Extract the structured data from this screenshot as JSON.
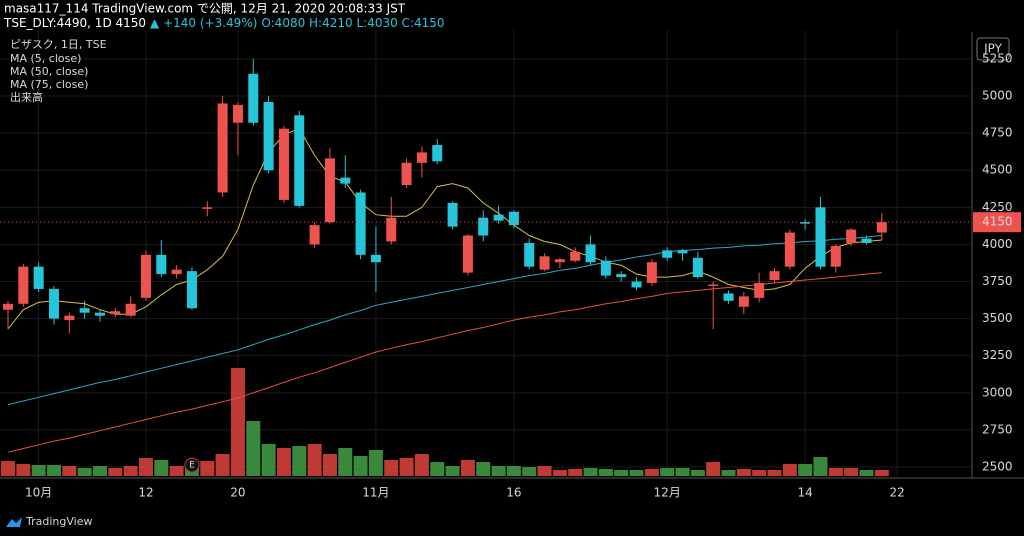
{
  "header": {
    "line1": "masa117_114 TradingView.com で公開, 12月 21, 2020 20:08:33 JST",
    "symbol": "TSE_DLY:4490, 1D 4150",
    "change": "▲ +140 (+3.49%)",
    "ohlc": "O:4080 H:4210 L:4030 C:4150"
  },
  "legend": [
    "ピザスク, 1日, TSE",
    "MA (5, close)",
    "MA (50, close)",
    "MA (75, close)",
    "出来高"
  ],
  "currency": "JPY",
  "earnings_marker": "E",
  "footer": "TradingView",
  "chart_data": {
    "type": "candlestick",
    "categories": [
      null,
      null,
      "10月",
      null,
      null,
      null,
      null,
      null,
      null,
      "12",
      null,
      null,
      null,
      null,
      null,
      "20",
      null,
      null,
      null,
      null,
      null,
      null,
      null,
      null,
      "11月",
      null,
      null,
      null,
      null,
      null,
      null,
      null,
      null,
      "16",
      null,
      null,
      null,
      null,
      null,
      null,
      null,
      null,
      null,
      "12月",
      null,
      null,
      null,
      null,
      null,
      null,
      null,
      null,
      "14",
      null,
      null,
      null,
      null,
      null,
      "22"
    ],
    "open": [
      3560,
      3600,
      3850,
      3700,
      3490,
      3570,
      3540,
      3530,
      3520,
      3640,
      3930,
      3800,
      3820,
      4240,
      4350,
      4820,
      5150,
      4960,
      4300,
      4870,
      4000,
      4150,
      4450,
      4350,
      3930,
      4020,
      4400,
      4550,
      4670,
      4280,
      3810,
      4180,
      4200,
      4220,
      4010,
      3830,
      3880,
      3890,
      4000,
      3890,
      3800,
      3750,
      3740,
      3960,
      3960,
      3910,
      3720,
      3670,
      3580,
      3640,
      3760,
      3850,
      4150,
      4250,
      3850,
      4010,
      4040,
      4080,
      null
    ],
    "high": [
      3620,
      3870,
      3880,
      3720,
      3540,
      3620,
      3560,
      3570,
      3650,
      3960,
      4030,
      3860,
      3850,
      4290,
      5000,
      4960,
      5250,
      5000,
      4800,
      4900,
      4150,
      4650,
      4600,
      4370,
      4120,
      4320,
      4580,
      4660,
      4710,
      4290,
      4070,
      4230,
      4260,
      4230,
      4040,
      3940,
      3910,
      3980,
      4060,
      3920,
      3820,
      3780,
      3900,
      3980,
      3970,
      3950,
      3750,
      3690,
      3680,
      3810,
      3840,
      4100,
      4170,
      4320,
      4000,
      4110,
      4060,
      4210,
      null
    ],
    "low": [
      3430,
      3580,
      3680,
      3460,
      3400,
      3500,
      3480,
      3510,
      3510,
      3620,
      3780,
      3770,
      3560,
      4190,
      4320,
      4600,
      4800,
      4480,
      4280,
      4250,
      3980,
      4140,
      4380,
      3900,
      3680,
      4000,
      4380,
      4450,
      4540,
      4100,
      3790,
      4020,
      4140,
      4110,
      3830,
      3820,
      3840,
      3880,
      3860,
      3770,
      3750,
      3690,
      3720,
      3890,
      3890,
      3770,
      3430,
      3600,
      3530,
      3610,
      3740,
      3830,
      4100,
      3830,
      3810,
      3990,
      4000,
      4030,
      null
    ],
    "close": [
      3600,
      3850,
      3700,
      3500,
      3520,
      3540,
      3520,
      3550,
      3600,
      3930,
      3800,
      3830,
      3570,
      4250,
      4950,
      4940,
      4820,
      4500,
      4780,
      4260,
      4130,
      4580,
      4410,
      3930,
      3880,
      4180,
      4550,
      4620,
      4560,
      4120,
      4060,
      4060,
      4160,
      4130,
      3850,
      3920,
      3900,
      3950,
      3880,
      3790,
      3780,
      3710,
      3880,
      3910,
      3940,
      3780,
      3730,
      3620,
      3650,
      3740,
      3820,
      4080,
      4140,
      3850,
      3990,
      4100,
      4010,
      4150,
      null
    ],
    "up_color": "#ef5350",
    "down_color": "#26c6da",
    "series": [
      {
        "name": "MA (5, close)",
        "color": "#d6c13a",
        "values": [
          3430,
          3560,
          3610,
          3620,
          3610,
          3600,
          3560,
          3530,
          3530,
          3580,
          3660,
          3730,
          3760,
          3830,
          3920,
          4100,
          4400,
          4620,
          4740,
          4780,
          4600,
          4460,
          4420,
          4280,
          4200,
          4190,
          4190,
          4250,
          4390,
          4410,
          4380,
          4280,
          4210,
          4130,
          4060,
          4020,
          4000,
          3950,
          3920,
          3880,
          3860,
          3800,
          3780,
          3780,
          3790,
          3820,
          3780,
          3730,
          3710,
          3690,
          3700,
          3730,
          3840,
          3920,
          3980,
          4010,
          4020,
          4030,
          null
        ]
      },
      {
        "name": "MA (50, close)",
        "color": "#2ba7c6",
        "values": [
          2920,
          2945,
          2970,
          2995,
          3020,
          3045,
          3070,
          3090,
          3115,
          3140,
          3165,
          3190,
          3215,
          3240,
          3265,
          3290,
          3325,
          3360,
          3390,
          3425,
          3460,
          3490,
          3525,
          3555,
          3590,
          3610,
          3630,
          3650,
          3670,
          3690,
          3710,
          3730,
          3750,
          3770,
          3790,
          3805,
          3825,
          3840,
          3860,
          3880,
          3895,
          3915,
          3930,
          3950,
          3960,
          3965,
          3975,
          3980,
          3990,
          3995,
          4005,
          4010,
          4020,
          4025,
          4035,
          4040,
          4050,
          4060,
          null
        ]
      },
      {
        "name": "MA (75, close)",
        "color": "#e8503a",
        "values": [
          2600,
          2625,
          2650,
          2675,
          2695,
          2720,
          2745,
          2770,
          2795,
          2820,
          2845,
          2870,
          2890,
          2915,
          2940,
          2965,
          3000,
          3035,
          3070,
          3105,
          3135,
          3170,
          3205,
          3240,
          3275,
          3300,
          3325,
          3345,
          3370,
          3395,
          3420,
          3440,
          3465,
          3490,
          3510,
          3525,
          3545,
          3560,
          3580,
          3600,
          3615,
          3635,
          3650,
          3670,
          3680,
          3690,
          3700,
          3710,
          3720,
          3730,
          3740,
          3750,
          3760,
          3770,
          3780,
          3790,
          3800,
          3810,
          null
        ]
      }
    ],
    "volume": {
      "name": "出来高",
      "up_color": "#e0443e",
      "down_color": "#43a047",
      "vlim": [
        0,
        110
      ],
      "values": [
        15,
        12,
        11,
        11,
        10,
        8,
        10,
        8,
        10,
        18,
        16,
        10,
        12,
        15,
        22,
        108,
        55,
        32,
        28,
        30,
        32,
        22,
        28,
        20,
        26,
        16,
        18,
        22,
        14,
        10,
        16,
        14,
        10,
        10,
        9,
        10,
        6,
        7,
        8,
        7,
        6,
        6,
        7,
        8,
        8,
        6,
        14,
        6,
        7,
        6,
        6,
        12,
        12,
        19,
        8,
        8,
        6,
        6,
        null
      ]
    },
    "earnings_index": 12,
    "last_price": 4150,
    "ylim": [
      2426,
      5445
    ],
    "yticks": [
      2500,
      2750,
      3000,
      3250,
      3500,
      3750,
      4000,
      4250,
      4500,
      4750,
      5000,
      5250
    ],
    "grid": true
  }
}
